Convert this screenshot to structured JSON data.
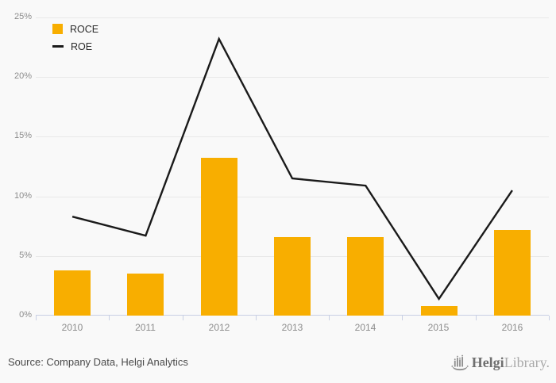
{
  "chart_data": {
    "type": "bar",
    "categories": [
      "2010",
      "2011",
      "2012",
      "2013",
      "2014",
      "2015",
      "2016"
    ],
    "series": [
      {
        "name": "ROCE",
        "type": "bar",
        "color": "#F8AE00",
        "values": [
          3.8,
          3.5,
          13.2,
          6.6,
          6.6,
          0.8,
          7.2
        ]
      },
      {
        "name": "ROE",
        "type": "line",
        "color": "#1a1a1a",
        "values": [
          8.3,
          6.7,
          23.2,
          11.5,
          10.9,
          1.4,
          10.5
        ]
      }
    ],
    "title": "",
    "xlabel": "",
    "ylabel": "",
    "ylim": [
      0,
      25
    ],
    "ytick_step": 5,
    "ytick_labels": [
      "0%",
      "5%",
      "10%",
      "15%",
      "20%",
      "25%"
    ],
    "grid": true,
    "legend_position": "top-left"
  },
  "colors": {
    "bar": "#F8AE00",
    "line": "#1a1a1a",
    "grid": "#e9e9e9",
    "axis": "#c9d0e4",
    "tick_label": "#8c8c8c",
    "background": "#f9f9f9"
  },
  "footer": {
    "source": "Source: Company Data, Helgi Analytics",
    "logo": {
      "bold": "Helgi",
      "light": "Library."
    }
  }
}
